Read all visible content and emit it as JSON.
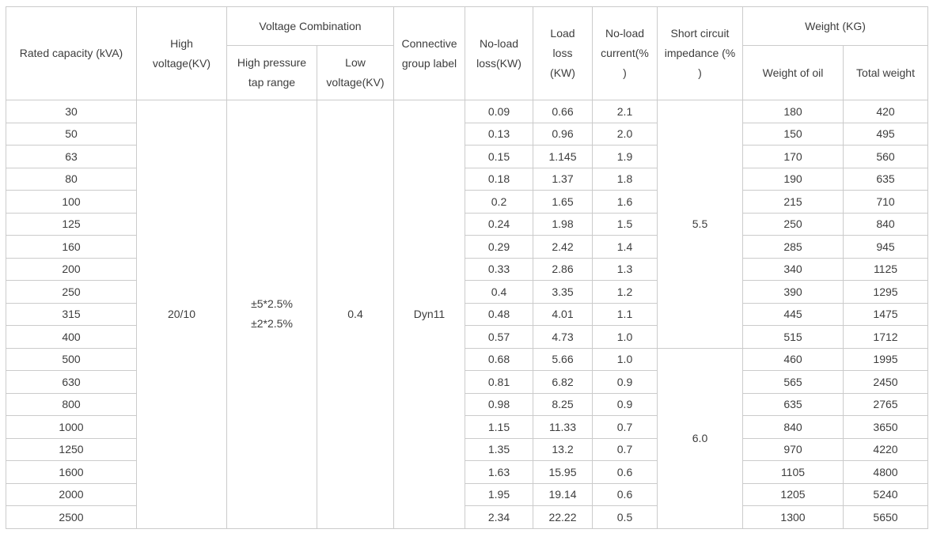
{
  "table": {
    "header": {
      "rated_capacity": "Rated capacity (kVA)",
      "high_voltage": "High voltage(KV)",
      "voltage_combination": "Voltage Combination",
      "high_pressure_tap_range": "High pressure tap range",
      "low_voltage": "Low voltage(KV)",
      "connective_group_label": "Connective group label",
      "no_load_loss": "No-load loss(KW)",
      "load_loss": "Load\nloss\n(KW)",
      "no_load_current": "No-load\ncurrent(%\n)",
      "short_circuit_impedance": "Short circuit\nimpedance (%\n)",
      "weight": "Weight (KG)",
      "weight_of_oil": "Weight of oil",
      "total_weight": "Total weight"
    },
    "merged": {
      "high_voltage": "20/10",
      "high_pressure_tap_range": "±5*2.5%\n±2*2.5%",
      "low_voltage": "0.4",
      "connective_group_label": "Dyn11",
      "impedance_groups": [
        {
          "value": "5.5",
          "start_row_index": 0,
          "row_span": 11
        },
        {
          "value": "6.0",
          "start_row_index": 11,
          "row_span": 8
        }
      ]
    },
    "rows": [
      {
        "capacity": "30",
        "no_load_loss": "0.09",
        "load_loss": "0.66",
        "no_load_current": "2.1",
        "weight_of_oil": "180",
        "total_weight": "420"
      },
      {
        "capacity": "50",
        "no_load_loss": "0.13",
        "load_loss": "0.96",
        "no_load_current": "2.0",
        "weight_of_oil": "150",
        "total_weight": "495"
      },
      {
        "capacity": "63",
        "no_load_loss": "0.15",
        "load_loss": "1.145",
        "no_load_current": "1.9",
        "weight_of_oil": "170",
        "total_weight": "560"
      },
      {
        "capacity": "80",
        "no_load_loss": "0.18",
        "load_loss": "1.37",
        "no_load_current": "1.8",
        "weight_of_oil": "190",
        "total_weight": "635"
      },
      {
        "capacity": "100",
        "no_load_loss": "0.2",
        "load_loss": "1.65",
        "no_load_current": "1.6",
        "weight_of_oil": "215",
        "total_weight": "710"
      },
      {
        "capacity": "125",
        "no_load_loss": "0.24",
        "load_loss": "1.98",
        "no_load_current": "1.5",
        "weight_of_oil": "250",
        "total_weight": "840"
      },
      {
        "capacity": "160",
        "no_load_loss": "0.29",
        "load_loss": "2.42",
        "no_load_current": "1.4",
        "weight_of_oil": "285",
        "total_weight": "945"
      },
      {
        "capacity": "200",
        "no_load_loss": "0.33",
        "load_loss": "2.86",
        "no_load_current": "1.3",
        "weight_of_oil": "340",
        "total_weight": "1125"
      },
      {
        "capacity": "250",
        "no_load_loss": "0.4",
        "load_loss": "3.35",
        "no_load_current": "1.2",
        "weight_of_oil": "390",
        "total_weight": "1295"
      },
      {
        "capacity": "315",
        "no_load_loss": "0.48",
        "load_loss": "4.01",
        "no_load_current": "1.1",
        "weight_of_oil": "445",
        "total_weight": "1475"
      },
      {
        "capacity": "400",
        "no_load_loss": "0.57",
        "load_loss": "4.73",
        "no_load_current": "1.0",
        "weight_of_oil": "515",
        "total_weight": "1712"
      },
      {
        "capacity": "500",
        "no_load_loss": "0.68",
        "load_loss": "5.66",
        "no_load_current": "1.0",
        "weight_of_oil": "460",
        "total_weight": "1995"
      },
      {
        "capacity": "630",
        "no_load_loss": "0.81",
        "load_loss": "6.82",
        "no_load_current": "0.9",
        "weight_of_oil": "565",
        "total_weight": "2450"
      },
      {
        "capacity": "800",
        "no_load_loss": "0.98",
        "load_loss": "8.25",
        "no_load_current": "0.9",
        "weight_of_oil": "635",
        "total_weight": "2765"
      },
      {
        "capacity": "1000",
        "no_load_loss": "1.15",
        "load_loss": "11.33",
        "no_load_current": "0.7",
        "weight_of_oil": "840",
        "total_weight": "3650"
      },
      {
        "capacity": "1250",
        "no_load_loss": "1.35",
        "load_loss": "13.2",
        "no_load_current": "0.7",
        "weight_of_oil": "970",
        "total_weight": "4220"
      },
      {
        "capacity": "1600",
        "no_load_loss": "1.63",
        "load_loss": "15.95",
        "no_load_current": "0.6",
        "weight_of_oil": "1105",
        "total_weight": "4800"
      },
      {
        "capacity": "2000",
        "no_load_loss": "1.95",
        "load_loss": "19.14",
        "no_load_current": "0.6",
        "weight_of_oil": "1205",
        "total_weight": "5240"
      },
      {
        "capacity": "2500",
        "no_load_loss": "2.34",
        "load_loss": "22.22",
        "no_load_current": "0.5",
        "weight_of_oil": "1300",
        "total_weight": "5650"
      }
    ],
    "colors": {
      "border": "#cbcbcb",
      "text": "#3d3d3d",
      "background": "#ffffff"
    }
  }
}
